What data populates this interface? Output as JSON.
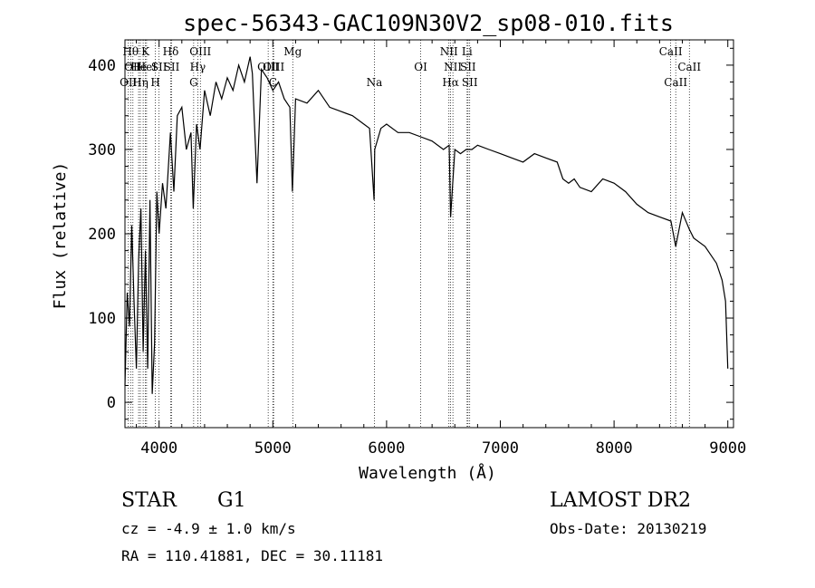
{
  "chart_data": {
    "type": "line",
    "title": "spec-56343-GAC109N30V2_sp08-010.fits",
    "xlabel": "Wavelength (Å)",
    "ylabel": "Flux (relative)",
    "xlim": [
      3700,
      9050
    ],
    "ylim": [
      -30,
      430
    ],
    "xticks": [
      4000,
      5000,
      6000,
      7000,
      8000,
      9000
    ],
    "yticks": [
      0,
      100,
      200,
      300,
      400
    ],
    "grid": false,
    "series": [
      {
        "x": [
          3700,
          3720,
          3740,
          3760,
          3780,
          3800,
          3820,
          3840,
          3860,
          3880,
          3900,
          3920,
          3940,
          3960,
          3980,
          4000,
          4030,
          4060,
          4100,
          4130,
          4160,
          4200,
          4240,
          4280,
          4300,
          4330,
          4360,
          4400,
          4450,
          4500,
          4550,
          4600,
          4650,
          4700,
          4750,
          4800,
          4820,
          4861,
          4900,
          4950,
          5000,
          5050,
          5100,
          5150,
          5172,
          5200,
          5300,
          5400,
          5500,
          5600,
          5700,
          5800,
          5850,
          5890,
          5896,
          5950,
          6000,
          6100,
          6200,
          6300,
          6400,
          6500,
          6550,
          6563,
          6600,
          6650,
          6700,
          6750,
          6800,
          6900,
          7000,
          7100,
          7200,
          7300,
          7400,
          7500,
          7550,
          7600,
          7650,
          7700,
          7800,
          7900,
          8000,
          8100,
          8200,
          8300,
          8400,
          8500,
          8542,
          8600,
          8662,
          8700,
          8800,
          8900,
          8950,
          8980,
          9000
        ],
        "y": [
          20,
          130,
          90,
          210,
          120,
          40,
          170,
          230,
          60,
          180,
          40,
          240,
          10,
          70,
          250,
          200,
          260,
          230,
          320,
          250,
          340,
          350,
          300,
          320,
          230,
          330,
          300,
          370,
          340,
          380,
          360,
          385,
          370,
          400,
          380,
          410,
          390,
          260,
          395,
          385,
          370,
          380,
          360,
          350,
          250,
          360,
          355,
          370,
          350,
          345,
          340,
          330,
          325,
          240,
          300,
          325,
          330,
          320,
          320,
          315,
          310,
          300,
          305,
          220,
          300,
          295,
          300,
          300,
          305,
          300,
          295,
          290,
          285,
          295,
          290,
          285,
          265,
          260,
          265,
          255,
          250,
          265,
          260,
          250,
          235,
          225,
          220,
          215,
          185,
          225,
          205,
          195,
          185,
          165,
          145,
          120,
          40
        ]
      }
    ],
    "lines": [
      {
        "x": 3730,
        "label": "OII",
        "row": 3
      },
      {
        "x": 3750,
        "label": "Hθ",
        "row": 1
      },
      {
        "x": 3770,
        "label": "OII",
        "row": 2
      },
      {
        "x": 3820,
        "label": "He",
        "row": 2
      },
      {
        "x": 3835,
        "label": "Hη",
        "row": 3
      },
      {
        "x": 3860,
        "label": "",
        "row": 0
      },
      {
        "x": 3880,
        "label": "K",
        "row": 1
      },
      {
        "x": 3890,
        "label": "HeI",
        "row": 2
      },
      {
        "x": 3968,
        "label": "H",
        "row": 3
      },
      {
        "x": 4000,
        "label": "SII",
        "row": 2
      },
      {
        "x": 4102,
        "label": "Hδ",
        "row": 1
      },
      {
        "x": 4110,
        "label": "SII",
        "row": 2
      },
      {
        "x": 4304,
        "label": "G",
        "row": 3
      },
      {
        "x": 4340,
        "label": "Hγ",
        "row": 2
      },
      {
        "x": 4363,
        "label": "OIII",
        "row": 1
      },
      {
        "x": 4959,
        "label": "OIII",
        "row": 2
      },
      {
        "x": 5007,
        "label": "OIII",
        "row": 2
      },
      {
        "x": 5000,
        "label": "C",
        "row": 3
      },
      {
        "x": 5175,
        "label": "Mg",
        "row": 1
      },
      {
        "x": 5893,
        "label": "Na",
        "row": 3
      },
      {
        "x": 6300,
        "label": "OI",
        "row": 2
      },
      {
        "x": 6548,
        "label": "NII",
        "row": 1
      },
      {
        "x": 6563,
        "label": "Hα",
        "row": 3
      },
      {
        "x": 6583,
        "label": "NII",
        "row": 2
      },
      {
        "x": 6708,
        "label": "Li",
        "row": 1
      },
      {
        "x": 6716,
        "label": "SII",
        "row": 2
      },
      {
        "x": 6731,
        "label": "SII",
        "row": 3
      },
      {
        "x": 8498,
        "label": "CaII",
        "row": 1
      },
      {
        "x": 8542,
        "label": "CaII",
        "row": 3
      },
      {
        "x": 8662,
        "label": "CaII",
        "row": 2
      }
    ]
  },
  "info": {
    "object_class": "STAR",
    "subclass": "G1",
    "redshift": "cz = -4.9 ± 1.0 km/s",
    "coords": "RA = 110.41881, DEC =  30.11181",
    "survey": "LAMOST DR2",
    "obs_date": "Obs-Date: 20130219"
  }
}
